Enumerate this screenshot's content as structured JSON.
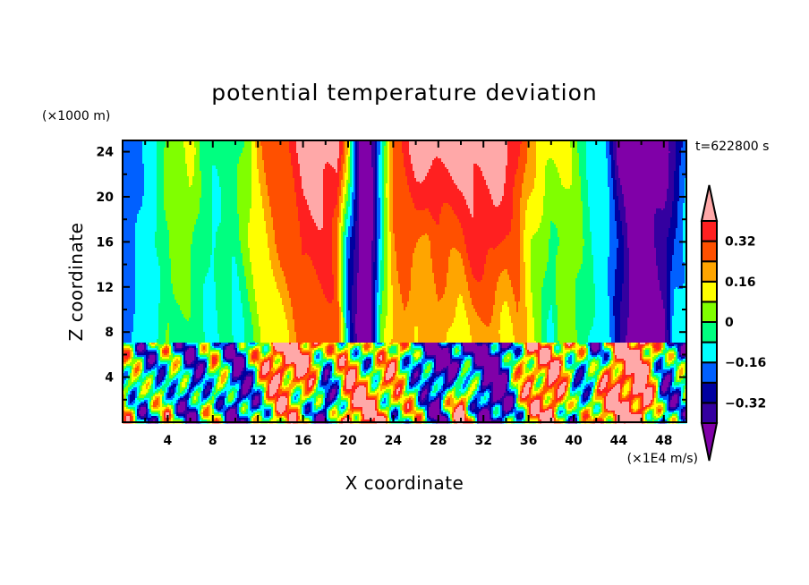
{
  "chart_data": {
    "type": "heatmap",
    "subtype": "filled-contour",
    "title": "potential temperature deviation",
    "xlabel": "X coordinate",
    "ylabel": "Z coordinate",
    "x_unit_label": "(×1E4 m/s)",
    "y_unit_label": "(×1000 m)",
    "time_label": "t=622800 s",
    "xlim": [
      0,
      50
    ],
    "ylim": [
      0,
      25
    ],
    "x_ticks": [
      "4",
      "8",
      "12",
      "16",
      "20",
      "24",
      "28",
      "32",
      "36",
      "40",
      "44",
      "48"
    ],
    "x_tick_values": [
      4,
      8,
      12,
      16,
      20,
      24,
      28,
      32,
      36,
      40,
      44,
      48
    ],
    "y_ticks": [
      "4",
      "8",
      "12",
      "16",
      "20",
      "24"
    ],
    "y_tick_values": [
      4,
      8,
      12,
      16,
      20,
      24
    ],
    "grid": false,
    "colorbar": {
      "placement": "right",
      "levels": [
        -0.4,
        -0.32,
        -0.24,
        -0.16,
        -0.08,
        0,
        0.08,
        0.16,
        0.24,
        0.32,
        0.4
      ],
      "labels": [
        {
          "value": 0.32,
          "text": "0.32"
        },
        {
          "value": 0.16,
          "text": "0.16"
        },
        {
          "value": 0,
          "text": "0"
        },
        {
          "value": -0.16,
          "text": "−0.16"
        },
        {
          "value": -0.32,
          "text": "−0.32"
        }
      ],
      "colors": [
        "#8000A8",
        "#3400A0",
        "#0000A0",
        "#0060FF",
        "#00FFFF",
        "#00FF80",
        "#80FF00",
        "#FFFF00",
        "#FFA500",
        "#FF5000",
        "#FF2020",
        "#FFA8A8"
      ],
      "extend": "both"
    },
    "field_upper": {
      "x": [
        0,
        1,
        2,
        3,
        4,
        5,
        6,
        7,
        8,
        9,
        10,
        11,
        12,
        13,
        14,
        15,
        16,
        17,
        18,
        19,
        20,
        21,
        22,
        23,
        24,
        25,
        26,
        27,
        28,
        29,
        30,
        31,
        32,
        33,
        34,
        35,
        36,
        37,
        38,
        39,
        40,
        41,
        42,
        43,
        44,
        45,
        46,
        47,
        48,
        49,
        50
      ],
      "z": [
        8,
        16,
        24
      ],
      "values": [
        [
          -0.2,
          -0.12,
          -0.12,
          -0.12,
          0.04,
          -0.04,
          -0.04,
          -0.04,
          -0.12,
          -0.04,
          -0.12,
          -0.04,
          0.04,
          0.12,
          0.12,
          0.2,
          0.28,
          0.28,
          0.28,
          0.28,
          -0.2,
          -0.44,
          -0.44,
          0.04,
          0.2,
          0.2,
          0.12,
          0.2,
          0.2,
          0.12,
          0.12,
          0.2,
          0.2,
          0.2,
          0.12,
          0.2,
          0.12,
          0.04,
          -0.12,
          0.04,
          0.04,
          -0.04,
          -0.12,
          -0.12,
          -0.28,
          -0.44,
          -0.44,
          -0.44,
          -0.44,
          -0.12,
          -0.12
        ],
        [
          -0.2,
          -0.2,
          -0.12,
          -0.04,
          -0.04,
          0.04,
          0.04,
          -0.04,
          -0.12,
          -0.04,
          -0.04,
          0.04,
          0.12,
          0.2,
          0.28,
          0.28,
          0.36,
          0.36,
          0.36,
          0.28,
          -0.2,
          -0.44,
          -0.44,
          -0.04,
          0.2,
          0.28,
          0.28,
          0.2,
          0.28,
          0.28,
          0.28,
          0.36,
          0.36,
          0.36,
          0.28,
          0.28,
          0.12,
          0.04,
          -0.04,
          0.04,
          0.04,
          -0.04,
          -0.12,
          -0.12,
          -0.28,
          -0.44,
          -0.44,
          -0.44,
          -0.36,
          -0.2,
          -0.12
        ],
        [
          -0.2,
          -0.2,
          -0.12,
          -0.12,
          0.04,
          0.04,
          0.12,
          -0.04,
          -0.04,
          -0.04,
          -0.04,
          0.04,
          0.2,
          0.28,
          0.28,
          0.36,
          0.44,
          0.44,
          0.44,
          0.44,
          0.12,
          -0.44,
          -0.44,
          -0.12,
          0.28,
          0.36,
          0.44,
          0.44,
          0.44,
          0.44,
          0.44,
          0.44,
          0.44,
          0.44,
          0.44,
          0.36,
          0.2,
          0.12,
          0.12,
          0.12,
          0.04,
          -0.04,
          -0.12,
          -0.2,
          -0.44,
          -0.44,
          -0.44,
          -0.44,
          -0.44,
          -0.36,
          -0.2
        ]
      ]
    },
    "field_lower": {
      "x": [
        0,
        2,
        4,
        6,
        8,
        10,
        12,
        14,
        16,
        18,
        20,
        22,
        24,
        26,
        28,
        30,
        32,
        34,
        36,
        38,
        40,
        42,
        44,
        46,
        48,
        50
      ],
      "z": [
        2,
        5.5
      ],
      "values": [
        [
          0.2,
          -0.2,
          0.1,
          -0.36,
          0.1,
          -0.36,
          -0.1,
          0.3,
          0.1,
          -0.36,
          0.3,
          0.44,
          0,
          0.1,
          -0.44,
          0.44,
          -0.44,
          -0.3,
          0.2,
          0.44,
          -0.2,
          0.2,
          0.44,
          0.44,
          -0.2,
          -0.1
        ],
        [
          0.1,
          -0.2,
          0,
          -0.3,
          0.05,
          -0.36,
          0.1,
          0.44,
          0.44,
          0,
          0.2,
          -0.1,
          0.3,
          -0.2,
          -0.44,
          -0.3,
          -0.44,
          -0.3,
          0.3,
          0.3,
          0.1,
          -0.3,
          0.44,
          0.44,
          -0.1,
          -0.2
        ]
      ]
    }
  }
}
